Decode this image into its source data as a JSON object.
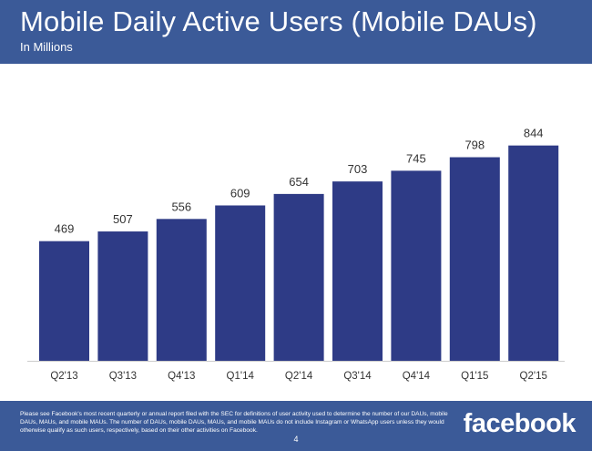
{
  "header": {
    "title": "Mobile Daily Active Users (Mobile DAUs)",
    "subtitle": "In Millions"
  },
  "footer": {
    "footnote": "Please see Facebook's most recent quarterly or annual report filed with the SEC for definitions of user activity used to determine the number of our DAUs, mobile DAUs, MAUs, and mobile MAUs. The number of DAUs, mobile DAUs, MAUs, and mobile MAUs do not include Instagram or WhatsApp users unless they would otherwise qualify as such users, respectively, based on their other activities on Facebook.",
    "page_number": "4",
    "logo_text": "facebook"
  },
  "colors": {
    "brand_blue": "#3b5a98",
    "bar": "#2e3b86",
    "label": "#333333",
    "baseline": "#cccccc"
  },
  "chart_data": {
    "type": "bar",
    "title": "Mobile Daily Active Users (Mobile DAUs)",
    "subtitle": "In Millions",
    "categories": [
      "Q2'13",
      "Q3'13",
      "Q4'13",
      "Q1'14",
      "Q2'14",
      "Q3'14",
      "Q4'14",
      "Q1'15",
      "Q2'15"
    ],
    "values": [
      469,
      507,
      556,
      609,
      654,
      703,
      745,
      798,
      844
    ],
    "data_labels": [
      "469",
      "507",
      "556",
      "609",
      "654",
      "703",
      "745",
      "798",
      "844"
    ],
    "ylim": [
      0,
      1000
    ],
    "xlabel": "",
    "ylabel": "",
    "grid": false,
    "legend": false
  }
}
